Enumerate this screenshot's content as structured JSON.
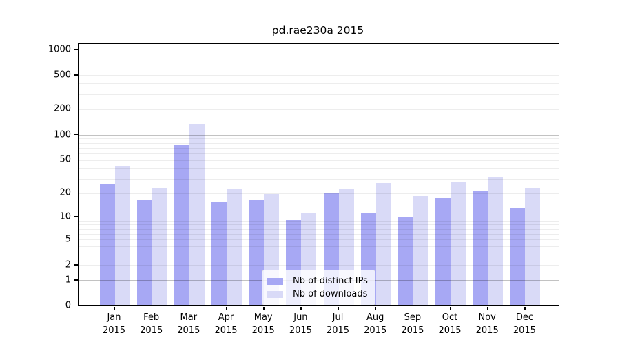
{
  "title": "pd.rae230a 2015",
  "chart_data": {
    "type": "bar",
    "title": "pd.rae230a 2015",
    "categories": [
      "Jan",
      "Feb",
      "Mar",
      "Apr",
      "May",
      "Jun",
      "Jul",
      "Aug",
      "Sep",
      "Oct",
      "Nov",
      "Dec"
    ],
    "year_label": "2015",
    "series": [
      {
        "name": "Nb of distinct IPs",
        "color": "#a7a8f4",
        "values": [
          25,
          16,
          74,
          15,
          16,
          9,
          20,
          11,
          10,
          17,
          21,
          13
        ]
      },
      {
        "name": "Nb of downloads",
        "color": "#d9daf7",
        "values": [
          42,
          23,
          132,
          22,
          19,
          11,
          22,
          26,
          18,
          27,
          31,
          23
        ]
      }
    ],
    "y_ticks": [
      0,
      1,
      2,
      5,
      10,
      20,
      50,
      100,
      200,
      500,
      1000
    ],
    "y_scale": "log10(1+y)",
    "ylim": [
      0,
      1175
    ],
    "xlabel": "",
    "ylabel": "",
    "grid": "on",
    "grid_major_at": [
      1,
      10,
      100,
      1000
    ],
    "legend_position": "lower center",
    "background_color": "#ffffff",
    "text_color": "#000000"
  }
}
